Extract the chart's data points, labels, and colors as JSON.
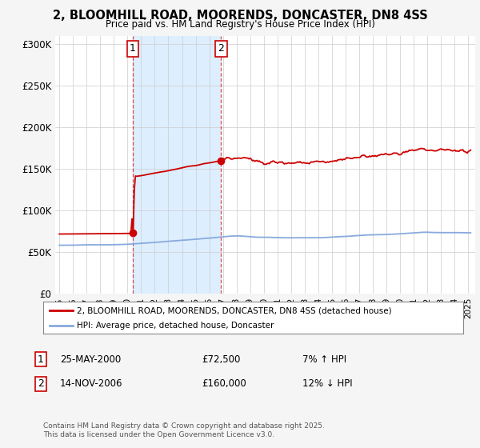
{
  "title": "2, BLOOMHILL ROAD, MOORENDS, DONCASTER, DN8 4SS",
  "subtitle": "Price paid vs. HM Land Registry's House Price Index (HPI)",
  "legend_line1": "2, BLOOMHILL ROAD, MOORENDS, DONCASTER, DN8 4SS (detached house)",
  "legend_line2": "HPI: Average price, detached house, Doncaster",
  "footnote": "Contains HM Land Registry data © Crown copyright and database right 2025.\nThis data is licensed under the Open Government Licence v3.0.",
  "sale1_label": "1",
  "sale1_date": "25-MAY-2000",
  "sale1_price": "£72,500",
  "sale1_hpi": "7% ↑ HPI",
  "sale2_label": "2",
  "sale2_date": "14-NOV-2006",
  "sale2_price": "£160,000",
  "sale2_hpi": "12% ↓ HPI",
  "property_color": "#cc0000",
  "hpi_color": "#88aadd",
  "shade_color": "#ddeeff",
  "background_color": "#f5f5f5",
  "plot_bg_color": "#ffffff",
  "ylim": [
    0,
    310000
  ],
  "yticks": [
    0,
    50000,
    100000,
    150000,
    200000,
    250000,
    300000
  ],
  "ytick_labels": [
    "£0",
    "£50K",
    "£100K",
    "£150K",
    "£200K",
    "£250K",
    "£300K"
  ],
  "sale1_x": 2000.38,
  "sale1_y": 72500,
  "sale2_x": 2006.87,
  "sale2_y": 160000,
  "xlim_left": 1994.7,
  "xlim_right": 2025.5
}
